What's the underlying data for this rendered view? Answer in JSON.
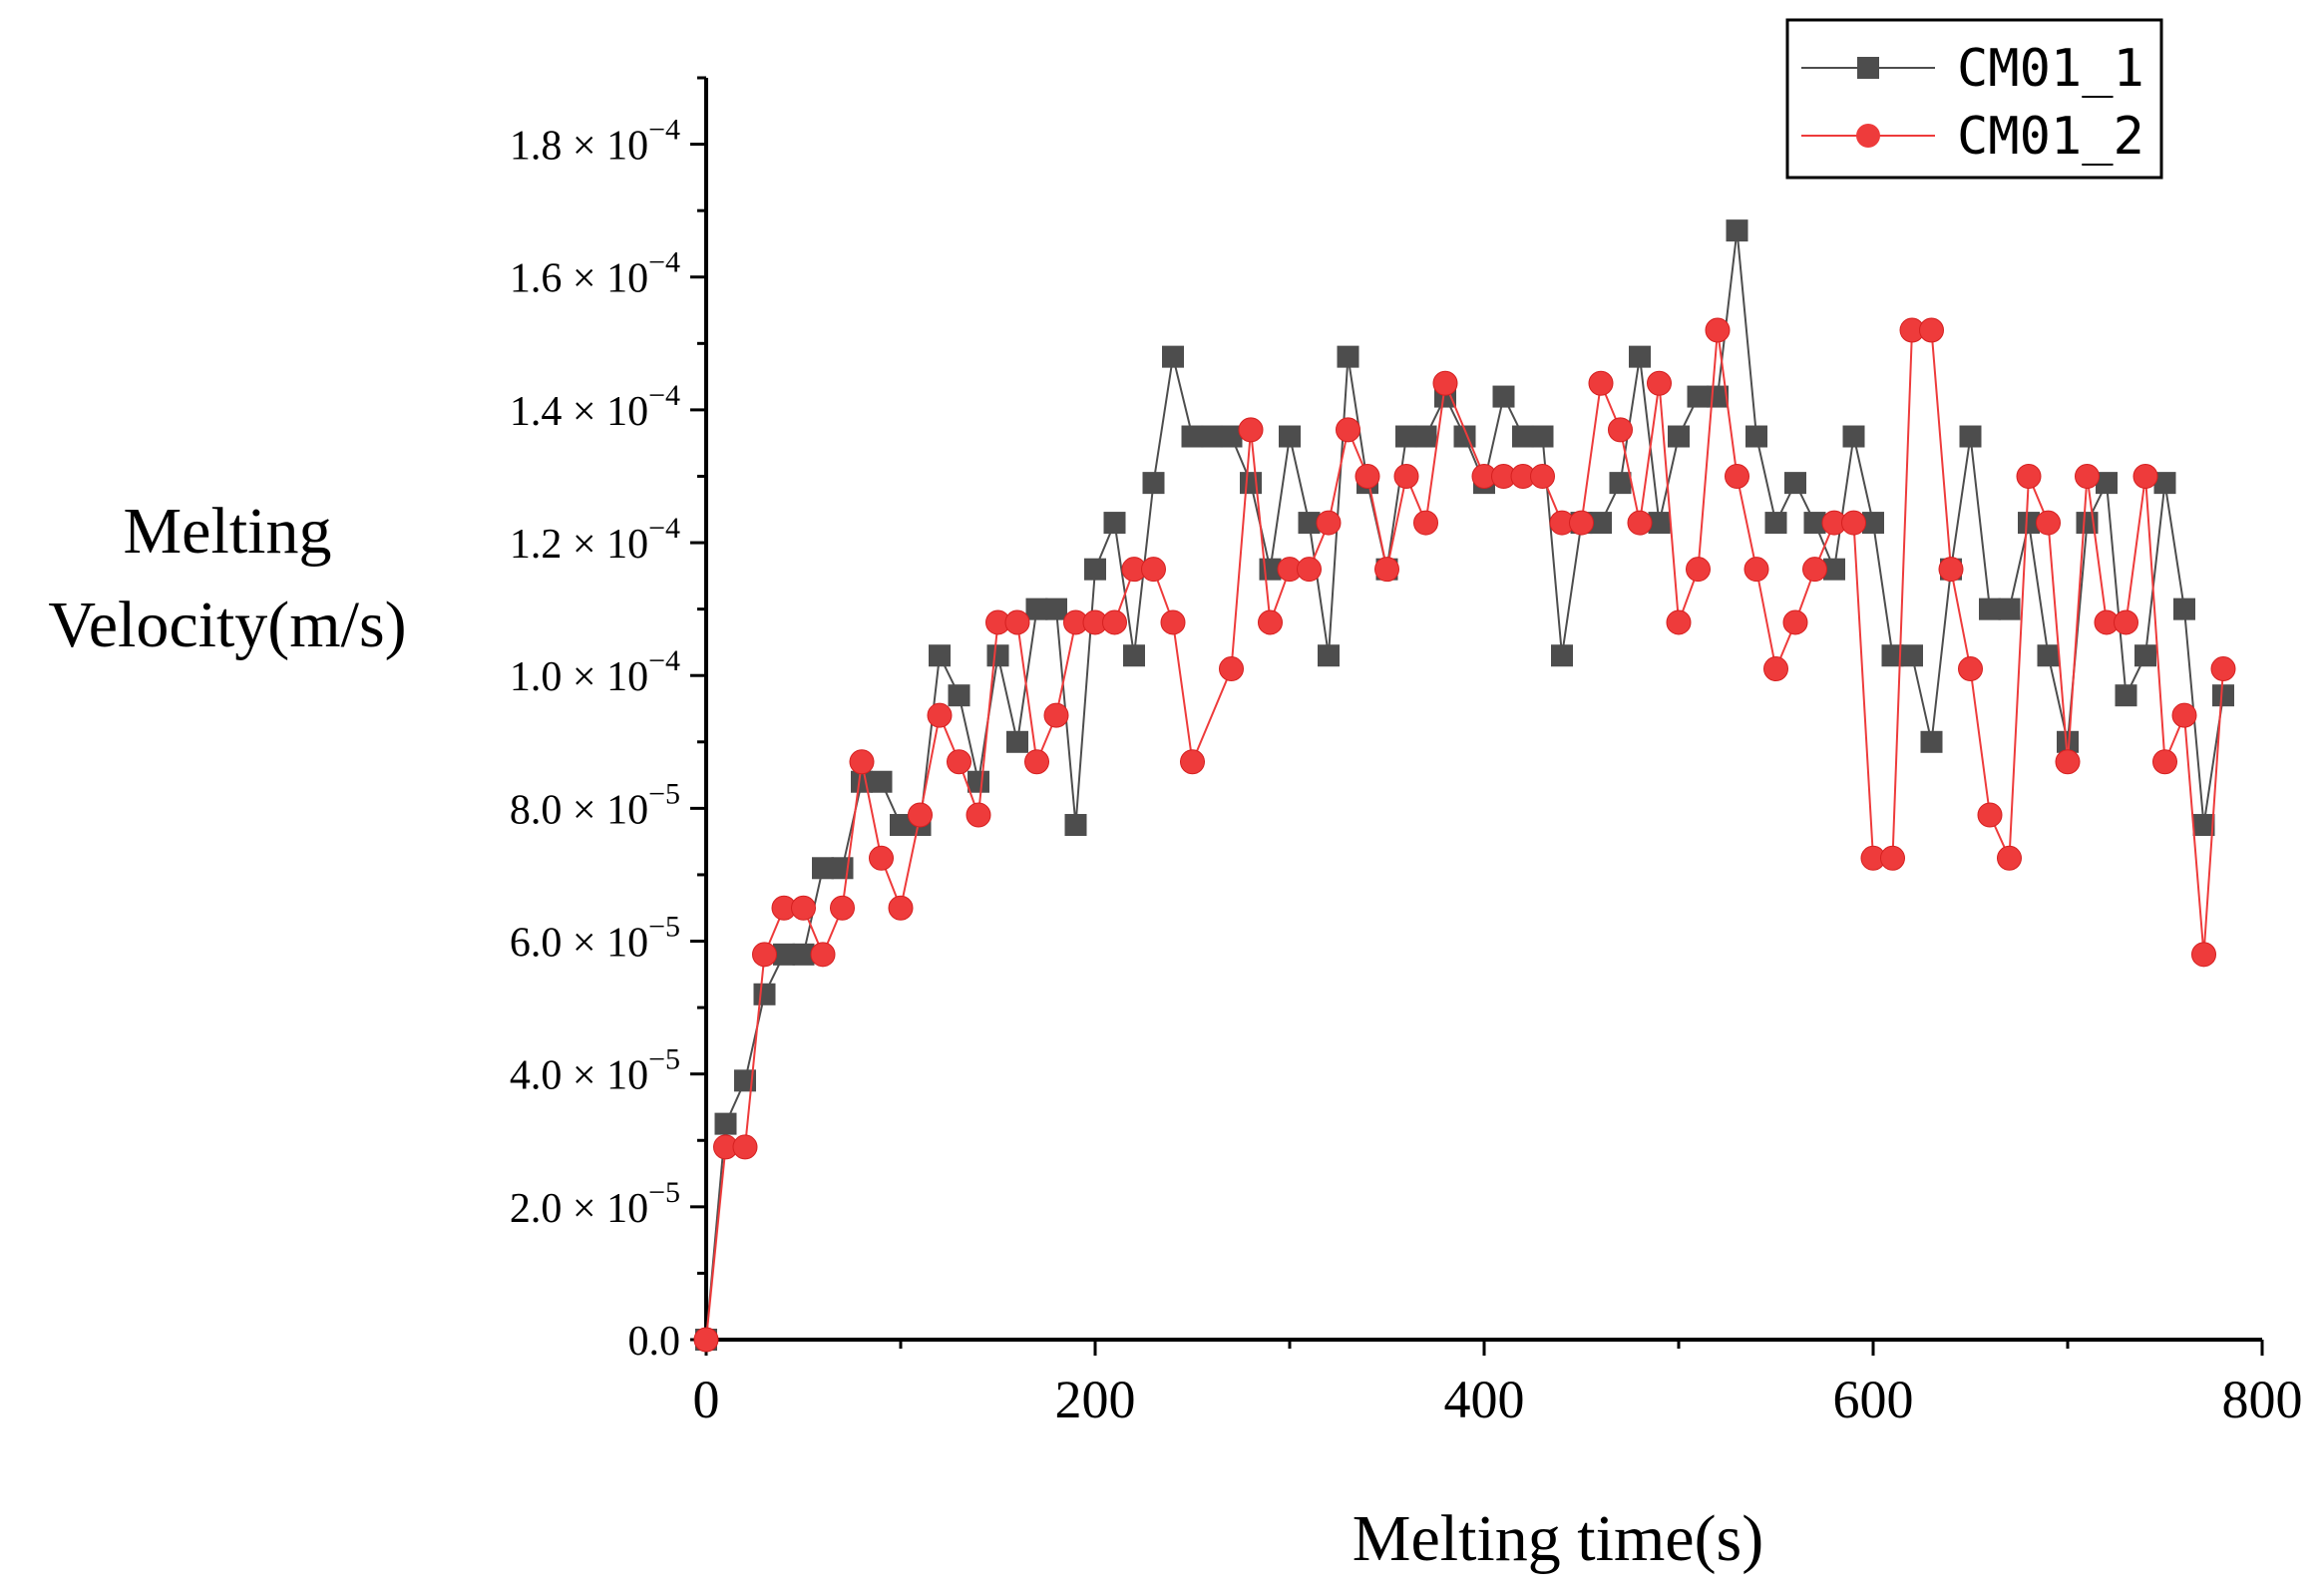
{
  "chart_data": {
    "type": "line",
    "title": "",
    "xlabel": "Melting time(s)",
    "ylabel_lines": [
      "Melting",
      "Velocity(m/s)"
    ],
    "xlim": [
      0,
      800
    ],
    "ylim": [
      0,
      0.00019
    ],
    "grid": false,
    "legend_position": "top-right",
    "x_ticks": [
      {
        "value": 0,
        "label": "0"
      },
      {
        "value": 200,
        "label": "200"
      },
      {
        "value": 400,
        "label": "400"
      },
      {
        "value": 600,
        "label": "600"
      },
      {
        "value": 800,
        "label": "800"
      }
    ],
    "y_ticks": [
      {
        "value": 0,
        "mantissa": "0.0",
        "times": "",
        "base": "",
        "exp": ""
      },
      {
        "value": 2e-05,
        "mantissa": "2.0",
        "times": "×",
        "base": "10",
        "exp": "−5"
      },
      {
        "value": 4e-05,
        "mantissa": "4.0",
        "times": "×",
        "base": "10",
        "exp": "−5"
      },
      {
        "value": 6e-05,
        "mantissa": "6.0",
        "times": "×",
        "base": "10",
        "exp": "−5"
      },
      {
        "value": 8e-05,
        "mantissa": "8.0",
        "times": "×",
        "base": "10",
        "exp": "−5"
      },
      {
        "value": 0.0001,
        "mantissa": "1.0",
        "times": "×",
        "base": "10",
        "exp": "−4"
      },
      {
        "value": 0.00012,
        "mantissa": "1.2",
        "times": "×",
        "base": "10",
        "exp": "−4"
      },
      {
        "value": 0.00014,
        "mantissa": "1.4",
        "times": "×",
        "base": "10",
        "exp": "−4"
      },
      {
        "value": 0.00016,
        "mantissa": "1.6",
        "times": "×",
        "base": "10",
        "exp": "−4"
      },
      {
        "value": 0.00018,
        "mantissa": "1.8",
        "times": "×",
        "base": "10",
        "exp": "−4"
      }
    ],
    "series": [
      {
        "name": "CM01_1",
        "color": "#4d4d4d",
        "marker": "square",
        "x": [
          0,
          10,
          20,
          30,
          40,
          50,
          60,
          70,
          80,
          90,
          100,
          110,
          120,
          130,
          140,
          150,
          160,
          170,
          180,
          190,
          200,
          210,
          220,
          230,
          240,
          250,
          260,
          270,
          280,
          290,
          300,
          310,
          320,
          330,
          340,
          350,
          360,
          370,
          380,
          390,
          400,
          410,
          420,
          430,
          440,
          450,
          460,
          470,
          480,
          490,
          500,
          510,
          520,
          530,
          540,
          550,
          560,
          570,
          580,
          590,
          600,
          610,
          620,
          630,
          640,
          650,
          660,
          670,
          680,
          690,
          700,
          710,
          720,
          730,
          740,
          750,
          760,
          770,
          780
        ],
        "values": [
          0,
          3.25e-05,
          3.9e-05,
          5.2e-05,
          5.8e-05,
          5.8e-05,
          7.1e-05,
          7.1e-05,
          8.4e-05,
          8.4e-05,
          7.75e-05,
          7.75e-05,
          0.000103,
          9.7e-05,
          8.4e-05,
          0.000103,
          9e-05,
          0.00011,
          0.00011,
          7.75e-05,
          0.000116,
          0.000123,
          0.000103,
          0.000129,
          0.000148,
          0.000136,
          0.000136,
          0.000136,
          0.000129,
          0.000116,
          0.000136,
          0.000123,
          0.000103,
          0.000148,
          0.000129,
          0.000116,
          0.000136,
          0.000136,
          0.000142,
          0.000136,
          0.000129,
          0.000142,
          0.000136,
          0.000136,
          0.000103,
          0.000123,
          0.000123,
          0.000129,
          0.000148,
          0.000123,
          0.000136,
          0.000142,
          0.000142,
          0.000167,
          0.000136,
          0.000123,
          0.000129,
          0.000123,
          0.000116,
          0.000136,
          0.000123,
          0.000103,
          0.000103,
          9e-05,
          0.000116,
          0.000136,
          0.00011,
          0.00011,
          0.000123,
          0.000103,
          9e-05,
          0.000123,
          0.000129,
          9.7e-05,
          0.000103,
          0.000129,
          0.00011,
          7.75e-05,
          9.7e-05
        ]
      },
      {
        "name": "CM01_2",
        "color": "#ee3b3b",
        "marker": "circle",
        "x": [
          0,
          10,
          20,
          30,
          40,
          50,
          60,
          70,
          80,
          90,
          100,
          110,
          120,
          130,
          140,
          150,
          160,
          170,
          180,
          190,
          200,
          210,
          220,
          230,
          240,
          250,
          270,
          280,
          290,
          300,
          310,
          320,
          330,
          340,
          350,
          360,
          370,
          380,
          400,
          410,
          420,
          430,
          440,
          450,
          460,
          470,
          480,
          490,
          500,
          510,
          520,
          530,
          540,
          550,
          560,
          570,
          580,
          590,
          600,
          610,
          620,
          630,
          640,
          650,
          660,
          670,
          680,
          690,
          700,
          710,
          720,
          730,
          740,
          750,
          760,
          770,
          780
        ],
        "values": [
          0,
          2.9e-05,
          2.9e-05,
          5.8e-05,
          6.5e-05,
          6.5e-05,
          5.8e-05,
          6.5e-05,
          8.7e-05,
          7.25e-05,
          6.5e-05,
          7.9e-05,
          9.4e-05,
          8.7e-05,
          7.9e-05,
          0.000108,
          0.000108,
          8.7e-05,
          9.4e-05,
          0.000108,
          0.000108,
          0.000108,
          0.000116,
          0.000116,
          0.000108,
          8.7e-05,
          0.000101,
          0.000137,
          0.000108,
          0.000116,
          0.000116,
          0.000123,
          0.000137,
          0.00013,
          0.000116,
          0.00013,
          0.000123,
          0.000144,
          0.00013,
          0.00013,
          0.00013,
          0.00013,
          0.000123,
          0.000123,
          0.000144,
          0.000137,
          0.000123,
          0.000144,
          0.000108,
          0.000116,
          0.000152,
          0.00013,
          0.000116,
          0.000101,
          0.000108,
          0.000116,
          0.000123,
          0.000123,
          7.25e-05,
          7.25e-05,
          0.000152,
          0.000152,
          0.000116,
          0.000101,
          7.9e-05,
          7.25e-05,
          0.00013,
          0.000123,
          8.7e-05,
          0.00013,
          0.000108,
          0.000108,
          0.00013,
          8.7e-05,
          9.4e-05,
          5.8e-05,
          0.000101
        ]
      }
    ]
  }
}
